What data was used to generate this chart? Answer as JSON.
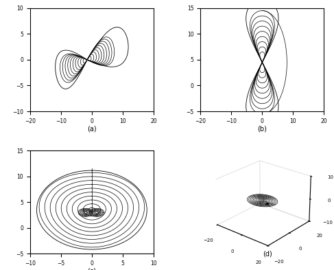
{
  "fig_width": 4.87,
  "fig_height": 3.93,
  "dpi": 100,
  "background": "#ffffff",
  "subplots": [
    {
      "label": "(a)",
      "xlim": [
        -20,
        20
      ],
      "ylim": [
        -10,
        10
      ],
      "xticks": [
        -20,
        -10,
        0,
        10,
        20
      ],
      "yticks": [
        -10,
        -5,
        0,
        5,
        10
      ]
    },
    {
      "label": "(b)",
      "xlim": [
        -20,
        20
      ],
      "ylim": [
        -5,
        15
      ],
      "xticks": [
        -20,
        -10,
        0,
        10,
        20
      ],
      "yticks": [
        -5,
        0,
        5,
        10,
        15
      ]
    },
    {
      "label": "(c)",
      "xlim": [
        -10,
        10
      ],
      "ylim": [
        -5,
        15
      ],
      "xticks": [
        -10,
        -5,
        0,
        5,
        10
      ],
      "yticks": [
        -5,
        0,
        5,
        10,
        15
      ]
    },
    {
      "label": "(d)",
      "is_3d": true,
      "xlim": [
        -20,
        20
      ],
      "ylim": [
        -20,
        20
      ],
      "zlim": [
        -10,
        10
      ],
      "xticks": [
        -20,
        0,
        20
      ],
      "yticks": [
        -20,
        0,
        20
      ],
      "zticks": [
        -10,
        0,
        10
      ]
    }
  ]
}
